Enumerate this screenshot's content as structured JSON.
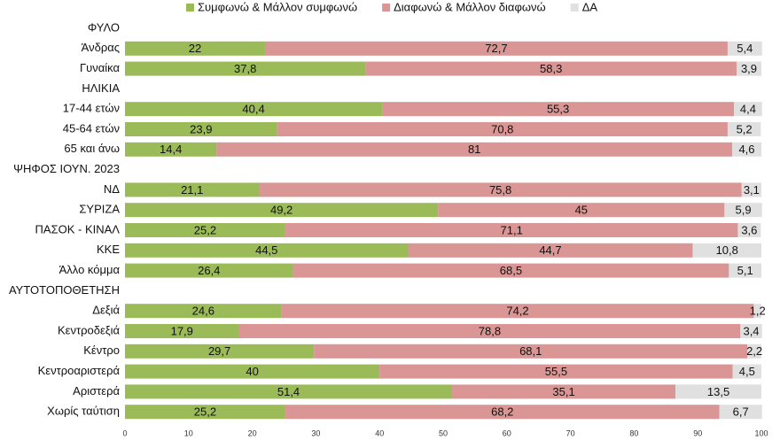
{
  "chart_data": {
    "type": "stacked-barh",
    "categories": [
      "ΦΥΛΟ",
      "Άνδρας",
      "Γυναίκα",
      "ΗΛΙΚΙΑ",
      "17-44 ετών",
      "45-64 ετών",
      "65 και άνω",
      "ΨΗΦΟΣ ΙΟΥΝ. 2023",
      "ΝΔ",
      "ΣΥΡΙΖΑ",
      "ΠΑΣΟΚ - ΚΙΝΑΛ",
      "ΚΚΕ",
      "Άλλο κόμμα",
      "ΑΥΤΟΤΟΠΟΘΕΤΗΣΗ",
      "Δεξιά",
      "Κεντροδεξιά",
      "Κέντρο",
      "Κεντροαριστερά",
      "Αριστερά",
      "Χωρίς ταύτιση"
    ],
    "series": [
      {
        "name": "Συμφωνώ & Μάλλον συμφωνώ",
        "color": "#9bbb59",
        "values": [
          null,
          22,
          37.8,
          null,
          40.4,
          23.9,
          14.4,
          null,
          21.1,
          49.2,
          25.2,
          44.5,
          26.4,
          null,
          24.6,
          17.9,
          29.7,
          40,
          51.4,
          25.2
        ],
        "value_labels": [
          null,
          "22",
          "37,8",
          null,
          "40,4",
          "23,9",
          "14,4",
          null,
          "21,1",
          "49,2",
          "25,2",
          "44,5",
          "26,4",
          null,
          "24,6",
          "17,9",
          "29,7",
          "40",
          "51,4",
          "25,2"
        ]
      },
      {
        "name": "Διαφωνώ & Μάλλον διαφωνώ",
        "color": "#d99694",
        "values": [
          null,
          72.7,
          58.3,
          null,
          55.3,
          70.8,
          81,
          null,
          75.8,
          45,
          71.1,
          44.7,
          68.5,
          null,
          74.2,
          78.8,
          68.1,
          55.5,
          35.1,
          68.2
        ],
        "value_labels": [
          null,
          "72,7",
          "58,3",
          null,
          "55,3",
          "70,8",
          "81",
          null,
          "75,8",
          "45",
          "71,1",
          "44,7",
          "68,5",
          null,
          "74,2",
          "78,8",
          "68,1",
          "55,5",
          "35,1",
          "68,2"
        ]
      },
      {
        "name": "ΔΑ",
        "color": "#e0e0e0",
        "values": [
          null,
          5.4,
          3.9,
          null,
          4.4,
          5.2,
          4.6,
          null,
          3.1,
          5.9,
          3.6,
          10.8,
          5.1,
          null,
          1.2,
          3.4,
          2.2,
          4.5,
          13.5,
          6.7
        ],
        "value_labels": [
          null,
          "5,4",
          "3,9",
          null,
          "4,4",
          "5,2",
          "4,6",
          null,
          "3,1",
          "5,9",
          "3,6",
          "10,8",
          "5,1",
          null,
          "1,2",
          "3,4",
          "2,2",
          "4,5",
          "13,5",
          "6,7"
        ]
      }
    ],
    "xlim": [
      0,
      100
    ],
    "xticks": [
      0,
      10,
      20,
      30,
      40,
      50,
      60,
      70,
      80,
      90,
      100
    ],
    "legend": "top"
  }
}
